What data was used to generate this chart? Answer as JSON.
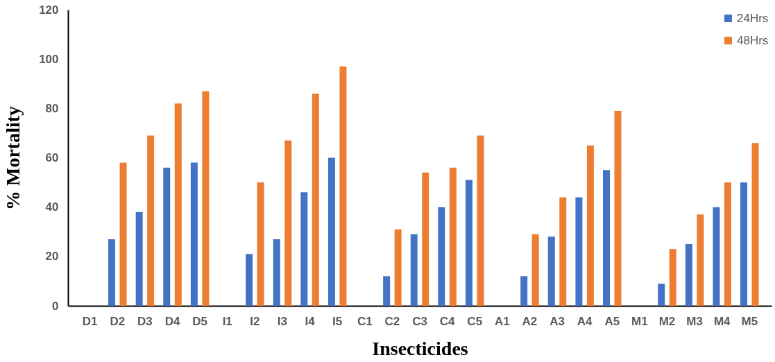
{
  "chart_data": {
    "type": "bar",
    "xlabel": "Insecticides",
    "ylabel": "% Mortality",
    "categories": [
      "D1",
      "D2",
      "D3",
      "D4",
      "D5",
      "I1",
      "I2",
      "I3",
      "I4",
      "I5",
      "C1",
      "C2",
      "C3",
      "C4",
      "C5",
      "A1",
      "A2",
      "A3",
      "A4",
      "A5",
      "M1",
      "M2",
      "M3",
      "M4",
      "M5"
    ],
    "series": [
      {
        "name": "24Hrs",
        "color": "#4472c4",
        "values": [
          0,
          27,
          38,
          56,
          58,
          0,
          21,
          27,
          46,
          60,
          0,
          12,
          29,
          40,
          51,
          0,
          12,
          28,
          44,
          55,
          0,
          9,
          25,
          40,
          50
        ]
      },
      {
        "name": "48Hrs",
        "color": "#ed7d31",
        "values": [
          0,
          58,
          69,
          82,
          87,
          0,
          50,
          67,
          86,
          97,
          0,
          31,
          54,
          56,
          69,
          0,
          29,
          44,
          65,
          79,
          0,
          23,
          37,
          50,
          66
        ]
      }
    ],
    "ylim": [
      0,
      120
    ],
    "yticks": [
      0,
      20,
      40,
      60,
      80,
      100,
      120
    ],
    "grid": false,
    "legend": "top right"
  }
}
